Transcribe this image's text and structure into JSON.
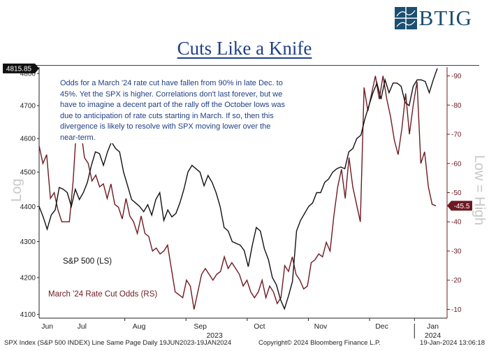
{
  "logo": {
    "text": "BTIG"
  },
  "chart_data": {
    "type": "line",
    "title": "Cuts Like a Knife",
    "annotation": "Odds for a March '24 rate cut have fallen from 90% in late Dec. to 45%. Yet the SPX is higher. Correlations don't last forever, but we have to imagine a decent part of the rally off the October lows was due to anticipation of rate cuts starting in March. If so, then this divergence is likely to resolve with SPX moving lower over the near-term.",
    "y_left_label": "Log",
    "y_right_label": "Low = High",
    "y_left_ticks": [
      "4800",
      "4700",
      "4600",
      "4500",
      "4400",
      "4300",
      "4200",
      "4100"
    ],
    "y_right_ticks": [
      "90",
      "80",
      "70",
      "60",
      "50",
      "40",
      "30",
      "20",
      "10"
    ],
    "y_left_range": [
      4090,
      4820
    ],
    "y_right_range": [
      7,
      93
    ],
    "x_range": [
      0,
      100
    ],
    "month_labels": [
      {
        "label": "Jun",
        "x": 2
      },
      {
        "label": "Jul",
        "x": 10.5
      },
      {
        "label": "Aug",
        "x": 24.5
      },
      {
        "label": "Sep",
        "x": 39.5
      },
      {
        "label": "Oct",
        "x": 54
      },
      {
        "label": "Nov",
        "x": 69
      },
      {
        "label": "Dec",
        "x": 84
      },
      {
        "label": "Jan",
        "x": 96.5
      }
    ],
    "year_labels": [
      {
        "label": "2023",
        "x": 43
      },
      {
        "label": "2024",
        "x": 96.5
      }
    ],
    "series": [
      {
        "name": "S&P 500 (LS)",
        "axis": "left",
        "color": "#111111",
        "last_value": "4815.85",
        "points": [
          [
            0,
            4400
          ],
          [
            1,
            4370
          ],
          [
            2,
            4335
          ],
          [
            3,
            4375
          ],
          [
            4,
            4390
          ],
          [
            5,
            4455
          ],
          [
            6,
            4450
          ],
          [
            7,
            4440
          ],
          [
            8,
            4400
          ],
          [
            9,
            4450
          ],
          [
            10,
            4420
          ],
          [
            11,
            4440
          ],
          [
            12,
            4470
          ],
          [
            13,
            4520
          ],
          [
            14,
            4560
          ],
          [
            15,
            4555
          ],
          [
            16,
            4520
          ],
          [
            17,
            4560
          ],
          [
            18,
            4590
          ],
          [
            19,
            4570
          ],
          [
            20,
            4560
          ],
          [
            21,
            4500
          ],
          [
            22,
            4460
          ],
          [
            23,
            4420
          ],
          [
            24,
            4410
          ],
          [
            25,
            4400
          ],
          [
            26,
            4385
          ],
          [
            27,
            4405
          ],
          [
            28,
            4375
          ],
          [
            29,
            4420
          ],
          [
            30,
            4440
          ],
          [
            31,
            4360
          ],
          [
            32,
            4390
          ],
          [
            33,
            4370
          ],
          [
            34,
            4380
          ],
          [
            35,
            4410
          ],
          [
            36,
            4450
          ],
          [
            37,
            4500
          ],
          [
            38,
            4520
          ],
          [
            39,
            4510
          ],
          [
            40,
            4500
          ],
          [
            41,
            4460
          ],
          [
            42,
            4490
          ],
          [
            43,
            4470
          ],
          [
            44,
            4440
          ],
          [
            45,
            4400
          ],
          [
            46,
            4340
          ],
          [
            47,
            4330
          ],
          [
            48,
            4300
          ],
          [
            49,
            4295
          ],
          [
            50,
            4290
          ],
          [
            51,
            4275
          ],
          [
            52,
            4230
          ],
          [
            53,
            4290
          ],
          [
            54,
            4340
          ],
          [
            55,
            4330
          ],
          [
            56,
            4280
          ],
          [
            57,
            4250
          ],
          [
            58,
            4200
          ],
          [
            59,
            4180
          ],
          [
            60,
            4140
          ],
          [
            61,
            4115
          ],
          [
            62,
            4150
          ],
          [
            63,
            4190
          ],
          [
            64,
            4330
          ],
          [
            65,
            4360
          ],
          [
            66,
            4380
          ],
          [
            67,
            4400
          ],
          [
            68,
            4410
          ],
          [
            69,
            4440
          ],
          [
            70,
            4440
          ],
          [
            71,
            4470
          ],
          [
            72,
            4480
          ],
          [
            73,
            4500
          ],
          [
            74,
            4510
          ],
          [
            75,
            4515
          ],
          [
            76,
            4510
          ],
          [
            77,
            4560
          ],
          [
            78,
            4570
          ],
          [
            79,
            4600
          ],
          [
            80,
            4610
          ],
          [
            81,
            4660
          ],
          [
            82,
            4700
          ],
          [
            83,
            4740
          ],
          [
            84,
            4770
          ],
          [
            85,
            4720
          ],
          [
            86,
            4780
          ],
          [
            87,
            4740
          ],
          [
            88,
            4770
          ],
          [
            89,
            4770
          ],
          [
            90,
            4760
          ],
          [
            91,
            4710
          ],
          [
            92,
            4700
          ],
          [
            93,
            4760
          ],
          [
            94,
            4780
          ],
          [
            95,
            4780
          ],
          [
            96,
            4775
          ],
          [
            97,
            4740
          ],
          [
            98,
            4780
          ],
          [
            99,
            4815.85
          ]
        ]
      },
      {
        "name": "March '24 Rate Cut Odds (RS)",
        "axis": "right",
        "color": "#6e1a22",
        "last_value": "45.5",
        "points": [
          [
            0,
            66
          ],
          [
            1,
            60
          ],
          [
            2,
            63
          ],
          [
            3,
            48
          ],
          [
            4,
            50
          ],
          [
            5,
            44
          ],
          [
            6,
            40
          ],
          [
            7,
            40
          ],
          [
            8,
            40
          ],
          [
            9,
            54
          ],
          [
            10,
            75
          ],
          [
            11,
            72
          ],
          [
            12,
            62
          ],
          [
            13,
            60
          ],
          [
            14,
            54
          ],
          [
            15,
            56
          ],
          [
            16,
            52
          ],
          [
            17,
            53
          ],
          [
            18,
            48
          ],
          [
            19,
            53
          ],
          [
            20,
            46
          ],
          [
            21,
            45
          ],
          [
            22,
            41
          ],
          [
            23,
            48
          ],
          [
            24,
            42
          ],
          [
            25,
            40
          ],
          [
            26,
            36
          ],
          [
            27,
            42
          ],
          [
            28,
            36
          ],
          [
            29,
            35
          ],
          [
            30,
            30
          ],
          [
            31,
            31
          ],
          [
            32,
            29
          ],
          [
            33,
            30
          ],
          [
            34,
            32
          ],
          [
            35,
            24
          ],
          [
            36,
            16
          ],
          [
            37,
            15
          ],
          [
            38,
            14
          ],
          [
            39,
            20
          ],
          [
            40,
            18
          ],
          [
            41,
            10
          ],
          [
            42,
            16
          ],
          [
            43,
            22
          ],
          [
            44,
            24
          ],
          [
            45,
            22
          ],
          [
            46,
            20
          ],
          [
            47,
            22
          ],
          [
            48,
            23
          ],
          [
            49,
            28
          ],
          [
            50,
            24
          ],
          [
            51,
            26
          ],
          [
            52,
            24
          ],
          [
            53,
            22
          ],
          [
            54,
            18
          ],
          [
            55,
            20
          ],
          [
            56,
            16
          ],
          [
            57,
            14
          ],
          [
            58,
            16
          ],
          [
            59,
            20
          ],
          [
            60,
            14
          ],
          [
            61,
            18
          ],
          [
            62,
            16
          ],
          [
            63,
            12
          ],
          [
            64,
            14
          ],
          [
            65,
            25
          ],
          [
            66,
            23
          ],
          [
            67,
            28
          ],
          [
            68,
            22
          ],
          [
            69,
            20
          ],
          [
            70,
            17
          ],
          [
            71,
            18
          ],
          [
            72,
            26
          ],
          [
            73,
            27
          ],
          [
            74,
            29
          ],
          [
            75,
            28
          ],
          [
            76,
            33
          ],
          [
            77,
            30
          ],
          [
            78,
            42
          ],
          [
            79,
            52
          ],
          [
            80,
            58
          ],
          [
            81,
            48
          ],
          [
            82,
            62
          ],
          [
            83,
            52
          ],
          [
            84,
            46
          ],
          [
            85,
            40
          ],
          [
            86,
            86
          ],
          [
            87,
            78
          ],
          [
            88,
            84
          ],
          [
            89,
            90
          ],
          [
            90,
            82
          ],
          [
            91,
            90
          ],
          [
            92,
            82
          ],
          [
            93,
            76
          ],
          [
            94,
            68
          ],
          [
            95,
            63
          ],
          [
            96,
            72
          ],
          [
            97,
            84
          ],
          [
            98,
            70
          ],
          [
            99,
            80
          ],
          [
            100,
            88
          ],
          [
            101,
            60
          ],
          [
            102,
            64
          ],
          [
            103,
            52
          ],
          [
            104,
            46
          ],
          [
            105,
            45.5
          ]
        ]
      }
    ],
    "legend": [
      {
        "label": "S&P 500 (LS)",
        "color": "#111111"
      },
      {
        "label": "March '24 Rate Cut Odds (RS)",
        "color": "#6e1a22"
      }
    ]
  },
  "footer": {
    "left": "SPX Index (S&P 500 INDEX) Line Same Page  Daily 19JUN2023-19JAN2024",
    "center": "Copyright© 2024 Bloomberg Finance L.P.",
    "right": "19-Jan-2024 13:06:18"
  }
}
